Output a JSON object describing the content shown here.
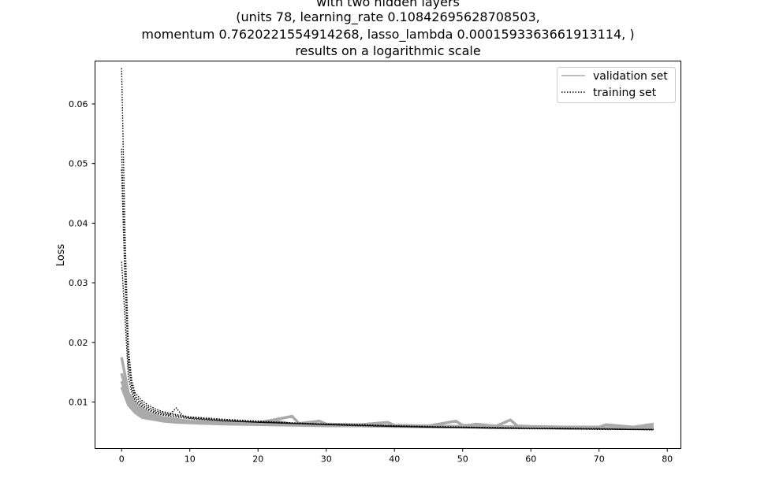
{
  "chart_data": {
    "type": "line",
    "title_lines": [
      "with two hidden layers",
      "(units 78, learning_rate 0.10842695628708503,",
      "momentum 0.7620221554914268, lasso_lambda 0.0001593363661913114, )",
      "results on a logarithmic scale"
    ],
    "xlabel": "",
    "ylabel": "Loss",
    "xlim": [
      -3.9,
      82
    ],
    "ylim": [
      0.0022,
      0.0672
    ],
    "x_ticks": [
      0,
      10,
      20,
      30,
      40,
      50,
      60,
      70,
      80
    ],
    "y_ticks": [
      0.01,
      0.02,
      0.03,
      0.04,
      0.05,
      0.06
    ],
    "y_tick_labels": [
      "0.01",
      "0.02",
      "0.03",
      "0.04",
      "0.05",
      "0.06"
    ],
    "grid": false,
    "legend_position": "upper-right",
    "legend": [
      {
        "label": "validation set",
        "style": "solid",
        "color": "#aaaaaa"
      },
      {
        "label": "training set",
        "style": "dotted",
        "color": "#000000"
      }
    ],
    "series": [
      {
        "group": "validation",
        "style": "solid",
        "color": "#aaaaaa",
        "x": [
          0,
          1,
          2,
          3,
          4,
          5,
          6,
          8,
          10,
          15,
          20,
          25,
          26,
          29,
          30,
          35,
          39,
          40,
          45,
          49,
          50,
          55,
          57,
          58,
          60,
          65,
          70,
          71,
          75,
          78
        ],
        "y": [
          0.0175,
          0.0115,
          0.0098,
          0.0088,
          0.0082,
          0.0078,
          0.0074,
          0.0071,
          0.0068,
          0.0066,
          0.0065,
          0.0076,
          0.0064,
          0.0068,
          0.0063,
          0.0062,
          0.0066,
          0.0061,
          0.006,
          0.0068,
          0.0061,
          0.006,
          0.007,
          0.006,
          0.0059,
          0.0058,
          0.0058,
          0.0062,
          0.0058,
          0.0063
        ]
      },
      {
        "group": "validation",
        "style": "solid",
        "color": "#aaaaaa",
        "x": [
          0,
          1,
          2,
          3,
          4,
          5,
          6,
          8,
          10,
          15,
          20,
          23,
          25,
          30,
          35,
          40,
          45,
          50,
          52,
          55,
          60,
          65,
          70,
          75,
          78
        ],
        "y": [
          0.0148,
          0.0108,
          0.0092,
          0.0083,
          0.0078,
          0.0075,
          0.0072,
          0.0069,
          0.0067,
          0.0065,
          0.0064,
          0.0067,
          0.0063,
          0.0062,
          0.0061,
          0.006,
          0.006,
          0.0059,
          0.0063,
          0.0059,
          0.0058,
          0.0057,
          0.0057,
          0.0057,
          0.0058
        ]
      },
      {
        "group": "validation",
        "style": "solid",
        "color": "#aaaaaa",
        "x": [
          0,
          1,
          2,
          3,
          4,
          5,
          6,
          8,
          10,
          15,
          20,
          25,
          30,
          35,
          40,
          45,
          50,
          55,
          60,
          65,
          70,
          75,
          78
        ],
        "y": [
          0.0135,
          0.0102,
          0.0088,
          0.0079,
          0.0075,
          0.0072,
          0.007,
          0.0067,
          0.0066,
          0.0064,
          0.0063,
          0.0062,
          0.0061,
          0.006,
          0.0059,
          0.0059,
          0.0058,
          0.0058,
          0.0057,
          0.0057,
          0.0056,
          0.0056,
          0.0056
        ]
      },
      {
        "group": "validation",
        "style": "solid",
        "color": "#aaaaaa",
        "x": [
          0,
          1,
          2,
          3,
          4,
          5,
          6,
          8,
          10,
          15,
          20,
          25,
          30,
          35,
          40,
          45,
          50,
          55,
          60,
          65,
          70,
          75,
          78
        ],
        "y": [
          0.0125,
          0.0095,
          0.0082,
          0.0074,
          0.0072,
          0.007,
          0.0068,
          0.0066,
          0.0065,
          0.0063,
          0.0062,
          0.0061,
          0.006,
          0.006,
          0.0059,
          0.0058,
          0.0058,
          0.0057,
          0.0057,
          0.0056,
          0.0056,
          0.0055,
          0.0055
        ]
      },
      {
        "group": "training",
        "style": "dotted",
        "color": "#000000",
        "x": [
          0,
          0.5,
          1,
          1.5,
          2,
          3,
          4,
          5,
          6,
          8,
          10,
          15,
          20,
          25,
          30,
          35,
          40,
          45,
          50,
          55,
          60,
          65,
          70,
          75,
          78
        ],
        "y": [
          0.066,
          0.038,
          0.019,
          0.0135,
          0.0115,
          0.0102,
          0.0094,
          0.0088,
          0.0084,
          0.0079,
          0.0075,
          0.0071,
          0.0068,
          0.0065,
          0.0063,
          0.0062,
          0.006,
          0.0059,
          0.0058,
          0.0057,
          0.0056,
          0.0056,
          0.0055,
          0.0054,
          0.0054
        ]
      },
      {
        "group": "training",
        "style": "dotted",
        "color": "#000000",
        "x": [
          0,
          0.5,
          1,
          1.5,
          2,
          3,
          4,
          5,
          6,
          8,
          10,
          15,
          20,
          25,
          30,
          35,
          40,
          45,
          50,
          55,
          60,
          65,
          70,
          75,
          78
        ],
        "y": [
          0.0525,
          0.032,
          0.017,
          0.0128,
          0.011,
          0.0098,
          0.0091,
          0.0085,
          0.0082,
          0.0077,
          0.0074,
          0.007,
          0.0067,
          0.0065,
          0.0063,
          0.0061,
          0.006,
          0.0058,
          0.0057,
          0.0057,
          0.0056,
          0.0055,
          0.0055,
          0.0054,
          0.0054
        ]
      },
      {
        "group": "training",
        "style": "dotted",
        "color": "#000000",
        "x": [
          0,
          0.5,
          1,
          1.5,
          2,
          3,
          4,
          5,
          6,
          7,
          8,
          9,
          10,
          15,
          20,
          25,
          30,
          35,
          40,
          45,
          50,
          55,
          60,
          65,
          70,
          75,
          78
        ],
        "y": [
          0.049,
          0.03,
          0.016,
          0.0122,
          0.0106,
          0.0095,
          0.0088,
          0.0083,
          0.008,
          0.0078,
          0.009,
          0.0076,
          0.0073,
          0.0069,
          0.0066,
          0.0064,
          0.0062,
          0.0061,
          0.0059,
          0.0058,
          0.0057,
          0.0056,
          0.0056,
          0.0055,
          0.0055,
          0.0054,
          0.0054
        ]
      },
      {
        "group": "training",
        "style": "dotted",
        "color": "#000000",
        "x": [
          0,
          0.5,
          1,
          1.5,
          2,
          3,
          4,
          5,
          6,
          8,
          10,
          15,
          20,
          25,
          30,
          35,
          40,
          45,
          50,
          55,
          60,
          65,
          70,
          75,
          78
        ],
        "y": [
          0.0335,
          0.024,
          0.014,
          0.0115,
          0.0102,
          0.0092,
          0.0086,
          0.0081,
          0.0078,
          0.0075,
          0.0072,
          0.0068,
          0.0066,
          0.0064,
          0.0062,
          0.006,
          0.0059,
          0.0058,
          0.0057,
          0.0056,
          0.0055,
          0.0055,
          0.0054,
          0.0054,
          0.0053
        ]
      }
    ]
  }
}
